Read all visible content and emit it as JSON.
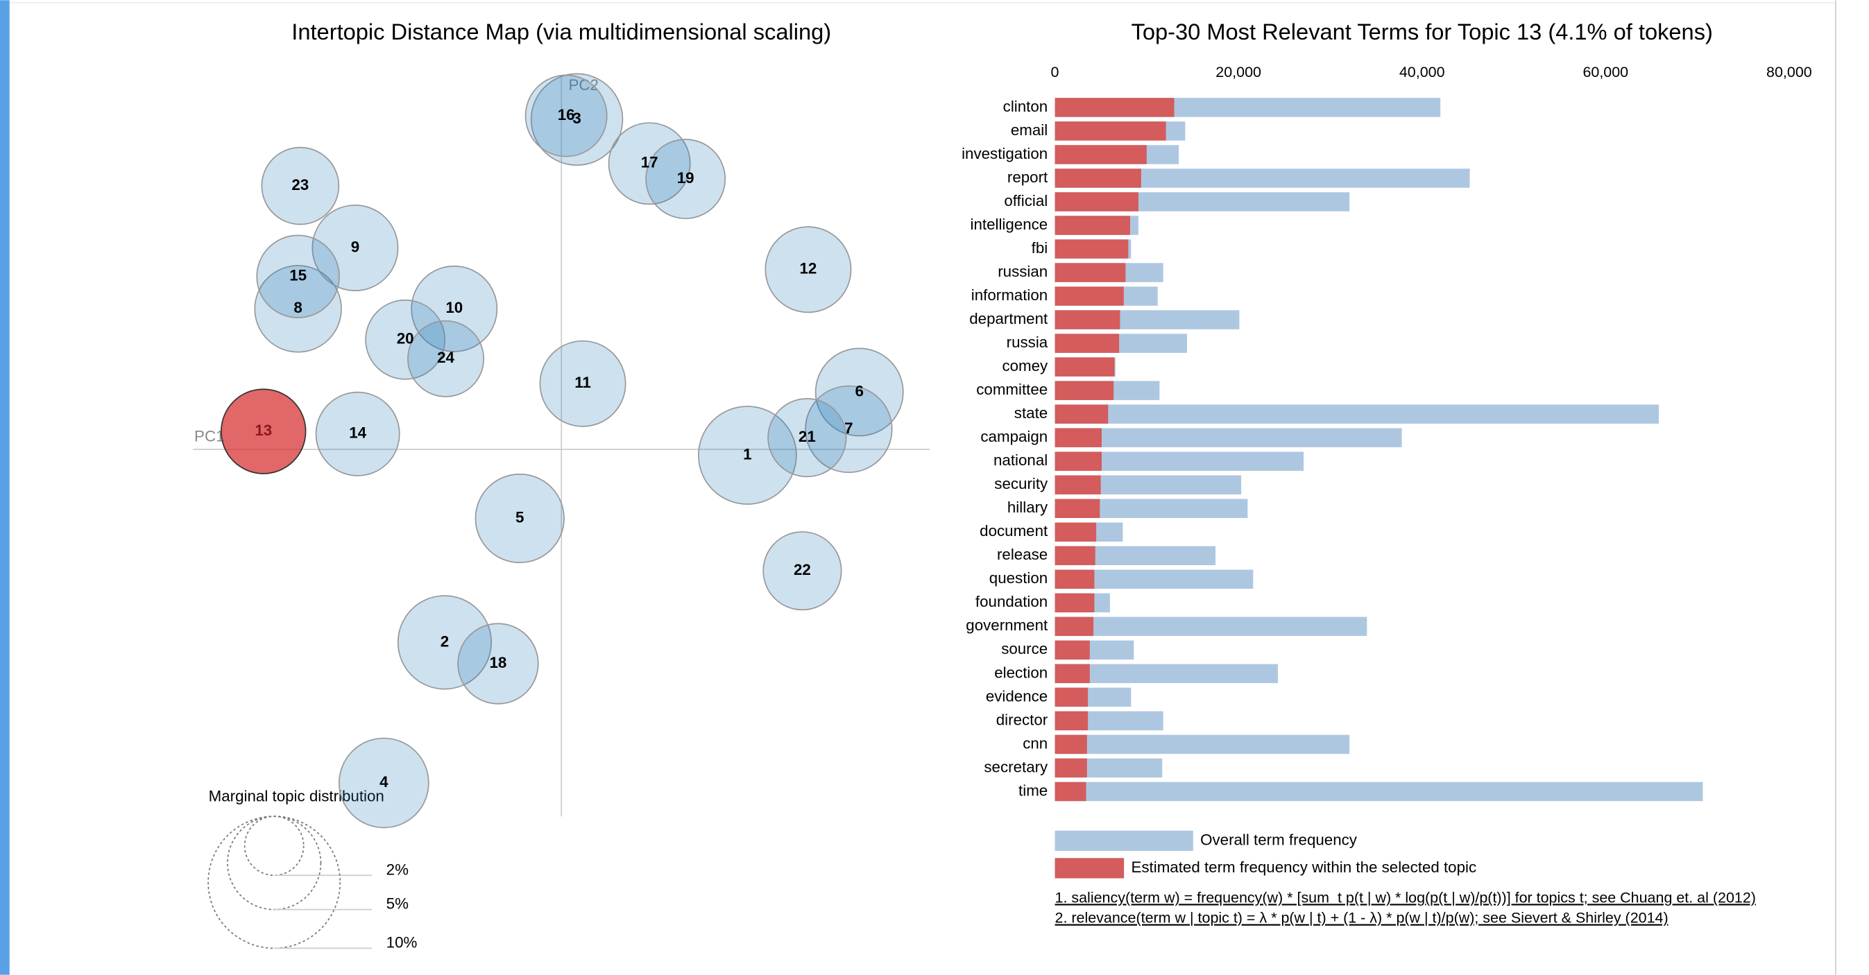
{
  "chart_data": [
    {
      "type": "bubble",
      "title": "Intertopic Distance Map (via multidimensional scaling)",
      "x_label": "PC1",
      "y_label": "PC2",
      "xlim": [
        -1,
        1
      ],
      "ylim": [
        -1,
        1
      ],
      "labels": [
        "1",
        "2",
        "3",
        "4",
        "5",
        "6",
        "7",
        "8",
        "9",
        "10",
        "11",
        "12",
        "13",
        "14",
        "15",
        "16",
        "17",
        "18",
        "19",
        "20",
        "21",
        "22",
        "23",
        "24"
      ],
      "x": [
        0.505,
        -0.317,
        0.042,
        -0.482,
        -0.113,
        0.809,
        0.78,
        -0.715,
        -0.56,
        -0.291,
        0.058,
        0.67,
        -0.809,
        -0.553,
        -0.715,
        0.013,
        0.239,
        -0.172,
        0.337,
        -0.424,
        0.667,
        0.654,
        -0.709,
        -0.314
      ],
      "y": [
        -0.016,
        -0.526,
        0.899,
        -0.909,
        -0.188,
        0.156,
        0.055,
        0.383,
        0.549,
        0.383,
        0.179,
        0.49,
        0.049,
        0.042,
        0.471,
        0.909,
        0.779,
        -0.584,
        0.737,
        0.299,
        0.032,
        -0.331,
        0.718,
        0.247
      ],
      "sizes": [
        5.5,
        5.0,
        4.8,
        4.6,
        4.5,
        4.4,
        4.3,
        4.3,
        4.2,
        4.2,
        4.2,
        4.2,
        4.1,
        4.0,
        3.9,
        3.8,
        3.8,
        3.7,
        3.6,
        3.6,
        3.5,
        3.5,
        3.4,
        3.3
      ],
      "colors": [
        "#1f77b4",
        "#1f77b4",
        "#1f77b4",
        "#1f77b4",
        "#1f77b4",
        "#1f77b4",
        "#1f77b4",
        "#1f77b4",
        "#1f77b4",
        "#1f77b4",
        "#1f77b4",
        "#1f77b4",
        "#d62728",
        "#1f77b4",
        "#1f77b4",
        "#1f77b4",
        "#1f77b4",
        "#1f77b4",
        "#1f77b4",
        "#1f77b4",
        "#1f77b4",
        "#1f77b4",
        "#1f77b4",
        "#1f77b4"
      ],
      "size_legend": {
        "title": "Marginal topic distribution",
        "values": [
          2,
          5,
          10
        ],
        "value_labels": [
          "2%",
          "5%",
          "10%"
        ]
      }
    },
    {
      "type": "hbar_overlay",
      "title": "Top-30 Most Relevant Terms for Topic 13 (4.1% of tokens)",
      "categories": [
        "clinton",
        "email",
        "investigation",
        "report",
        "official",
        "intelligence",
        "fbi",
        "russian",
        "information",
        "department",
        "russia",
        "comey",
        "committee",
        "state",
        "campaign",
        "national",
        "security",
        "hillary",
        "document",
        "release",
        "question",
        "foundation",
        "government",
        "source",
        "election",
        "evidence",
        "director",
        "cnn",
        "secretary",
        "time"
      ],
      "series": [
        {
          "name": "Overall term frequency",
          "color": "#aec7e1",
          "values": [
            42000,
            14200,
            13500,
            45200,
            32100,
            9100,
            8300,
            11800,
            11200,
            20100,
            14400,
            6600,
            11400,
            65800,
            37800,
            27100,
            20300,
            21000,
            7400,
            17500,
            21600,
            6000,
            34000,
            8600,
            24300,
            8300,
            11800,
            32100,
            11700,
            70600
          ]
        },
        {
          "name": "Estimated term frequency within the selected topic",
          "color": "#d45c5c",
          "values": [
            13000,
            12100,
            10000,
            9400,
            9100,
            8200,
            8000,
            7700,
            7500,
            7100,
            7000,
            6500,
            6400,
            5800,
            5100,
            5100,
            5000,
            4900,
            4500,
            4400,
            4300,
            4300,
            4200,
            3800,
            3800,
            3600,
            3600,
            3500,
            3500,
            3400
          ]
        }
      ],
      "xlim": [
        0,
        80000
      ],
      "xticks": [
        0,
        {
          "value": 20000,
          "label": "20,000"
        },
        {
          "value": 40000,
          "label": "40,000"
        },
        {
          "value": 60000,
          "label": "60,000"
        },
        {
          "value": 80000,
          "label": "80,000"
        }
      ],
      "footnotes": [
        "1. saliency(term w) = frequency(w) * [sum_t p(t | w) * log(p(t | w)/p(t))] for topics t; see Chuang et. al (2012)",
        "2. relevance(term w | topic t) = λ * p(w | t) + (1 - λ) * p(w | t)/p(w); see Sievert & Shirley (2014)"
      ]
    }
  ]
}
